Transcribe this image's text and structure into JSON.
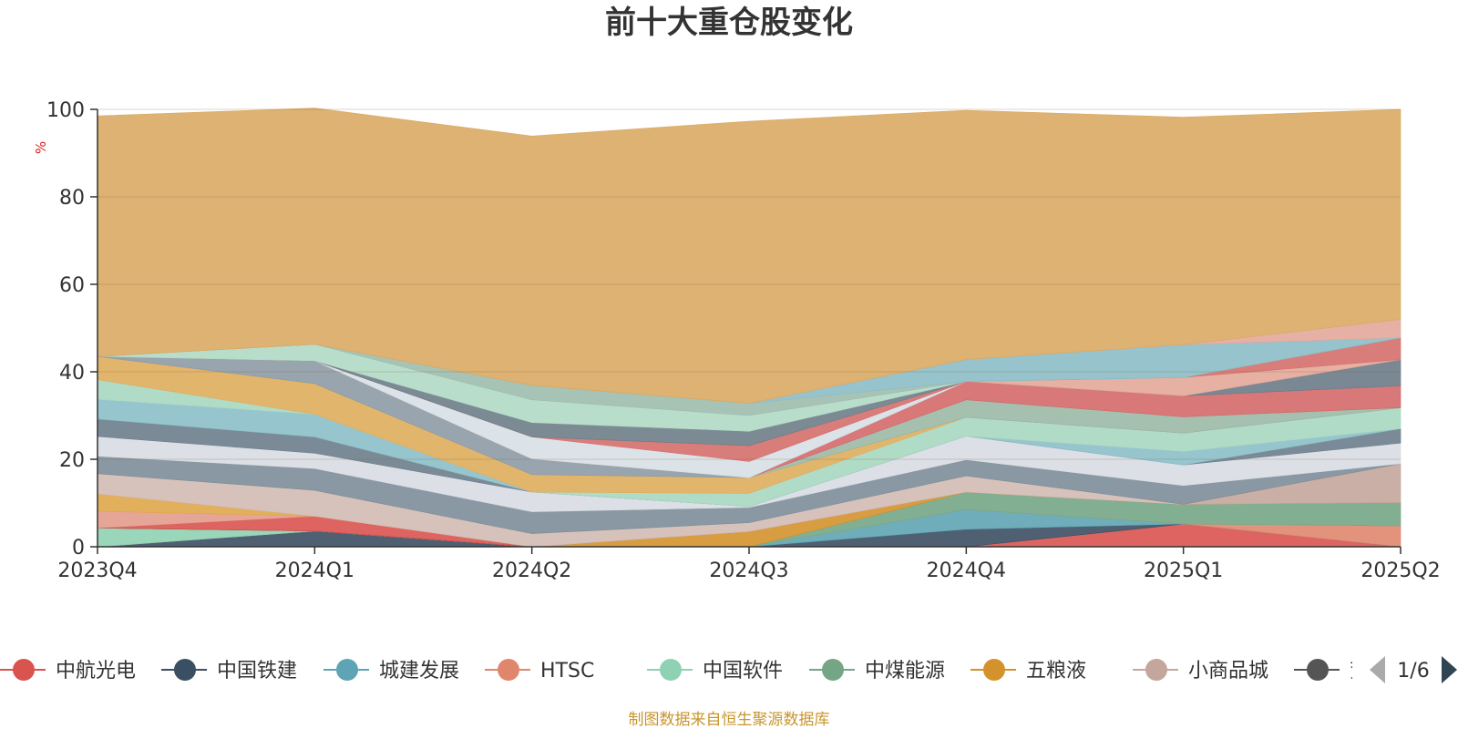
{
  "chart_data": {
    "type": "area",
    "stacked": true,
    "title": "前十大重仓股变化",
    "ylabel": "%",
    "ylim": [
      0,
      100
    ],
    "yticks": [
      0,
      20,
      40,
      60,
      80,
      100
    ],
    "categories": [
      "2023Q4",
      "2024Q1",
      "2024Q2",
      "2024Q3",
      "2024Q4",
      "2025Q1",
      "2025Q2"
    ],
    "grid": true,
    "series": [
      {
        "name": "中航光电",
        "color": "#d9534f",
        "values": [
          0,
          0,
          0,
          0,
          0,
          5.2,
          0
        ]
      },
      {
        "name": "中国铁建",
        "color": "#3b4f63",
        "values": [
          0,
          3.6,
          0,
          0,
          4,
          0,
          0
        ]
      },
      {
        "name": "城建发展",
        "color": "#5fa4b4",
        "values": [
          0,
          0,
          0,
          0,
          4.5,
          0,
          0
        ]
      },
      {
        "name": "HTSC",
        "color": "#e0866d",
        "values": [
          0,
          0,
          0,
          0,
          0,
          0,
          4.8
        ]
      },
      {
        "name": "中国软件",
        "color": "#8fd1b3",
        "values": [
          4.3,
          0,
          0,
          0,
          0,
          0,
          0
        ]
      },
      {
        "name": "中煤能源",
        "color": "#74a686",
        "values": [
          0,
          0,
          0,
          0,
          4,
          4.5,
          5.3
        ]
      },
      {
        "name": "五粮液",
        "color": "#d4922c",
        "values": [
          0,
          0,
          0,
          3.5,
          0,
          0,
          0
        ]
      },
      {
        "name": "小商品城",
        "color": "#c4a69d",
        "values": [
          0,
          0,
          0,
          0,
          0,
          0,
          8.9
        ]
      },
      {
        "name": "兖矿能源",
        "color": "#555555",
        "values": [
          0,
          0,
          0,
          0,
          0,
          0,
          0
        ]
      },
      {
        "name": "",
        "color": "#d9534f",
        "values": [
          0,
          3.4,
          0,
          0,
          0,
          0,
          0
        ]
      },
      {
        "name": "",
        "color": "#e39c8c",
        "values": [
          3.8,
          0,
          0,
          0,
          0,
          0,
          0
        ]
      },
      {
        "name": "",
        "color": "#dfa64a",
        "values": [
          4,
          0,
          0,
          0,
          0,
          0,
          0
        ]
      },
      {
        "name": "",
        "color": "#d1bbb4",
        "values": [
          4.6,
          5.9,
          3,
          2,
          3.7,
          0,
          0
        ]
      },
      {
        "name": "",
        "color": "#7d8d99",
        "values": [
          4,
          5,
          5,
          3.5,
          3.7,
          4.3,
          0
        ]
      },
      {
        "name": "",
        "color": "#d8dde3",
        "values": [
          4.5,
          3.5,
          4.5,
          0.2,
          5.4,
          4.7,
          4.7
        ]
      },
      {
        "name": "",
        "color": "#6b7e8c",
        "values": [
          4,
          3.7,
          0,
          0,
          0,
          0,
          3.3
        ]
      },
      {
        "name": "",
        "color": "#8cbfc9",
        "values": [
          4.5,
          5.2,
          0,
          0,
          0,
          3.1,
          0
        ]
      },
      {
        "name": "",
        "color": "#a7d7c0",
        "values": [
          4.5,
          0,
          0,
          3,
          4.3,
          4.2,
          4.8
        ]
      },
      {
        "name": "",
        "color": "#dfad5c",
        "values": [
          5.3,
          7,
          4,
          3.6,
          0,
          0,
          0
        ]
      },
      {
        "name": "",
        "color": "#8d9aa5",
        "values": [
          0,
          5.2,
          3.6,
          0,
          0,
          0,
          0
        ]
      },
      {
        "name": "",
        "color": "#9bb9a6",
        "values": [
          0,
          0,
          0,
          0,
          4,
          3.7,
          0
        ]
      },
      {
        "name": "",
        "color": "#d4696a",
        "values": [
          0,
          0,
          0,
          0,
          4.2,
          4.8,
          5
        ]
      },
      {
        "name": "",
        "color": "#6c7b88",
        "values": [
          0,
          0,
          0,
          0,
          0,
          0,
          6
        ]
      },
      {
        "name": "",
        "color": "#e3a798",
        "values": [
          0,
          0,
          0,
          0,
          0,
          4.2,
          0
        ]
      },
      {
        "name": "",
        "color": "#d7e0e6",
        "values": [
          0,
          0,
          5,
          3.7,
          0,
          0,
          0
        ]
      },
      {
        "name": "",
        "color": "#d56f6c",
        "values": [
          0,
          0,
          0,
          3.6,
          0,
          0,
          5
        ]
      },
      {
        "name": "",
        "color": "#6e7d88",
        "values": [
          0,
          0,
          3.3,
          3.3,
          0,
          0,
          0
        ]
      },
      {
        "name": "",
        "color": "#b1d9c5",
        "values": [
          0,
          3.8,
          5.2,
          3.6,
          0,
          0,
          0
        ]
      },
      {
        "name": "",
        "color": "#9dbcad",
        "values": [
          0,
          0,
          3.3,
          2.8,
          0,
          0,
          0
        ]
      },
      {
        "name": "",
        "color": "#8cbcc7",
        "values": [
          0,
          0,
          0,
          0,
          5,
          7.5,
          0
        ]
      },
      {
        "name": "",
        "color": "#e3a79b",
        "values": [
          0,
          0,
          0,
          0,
          0,
          0,
          4.2
        ]
      },
      {
        "name": "",
        "color": "#d9aa63",
        "values": [
          55,
          54,
          57,
          64.5,
          57,
          52,
          48
        ]
      }
    ]
  },
  "legend": {
    "items": [
      "中航光电",
      "中国铁建",
      "城建发展",
      "HTSC",
      "中国软件",
      "中煤能源",
      "五粮液",
      "小商品城",
      "兖矿能源"
    ],
    "page": "1/6"
  },
  "source": "制图数据来自恒生聚源数据库"
}
